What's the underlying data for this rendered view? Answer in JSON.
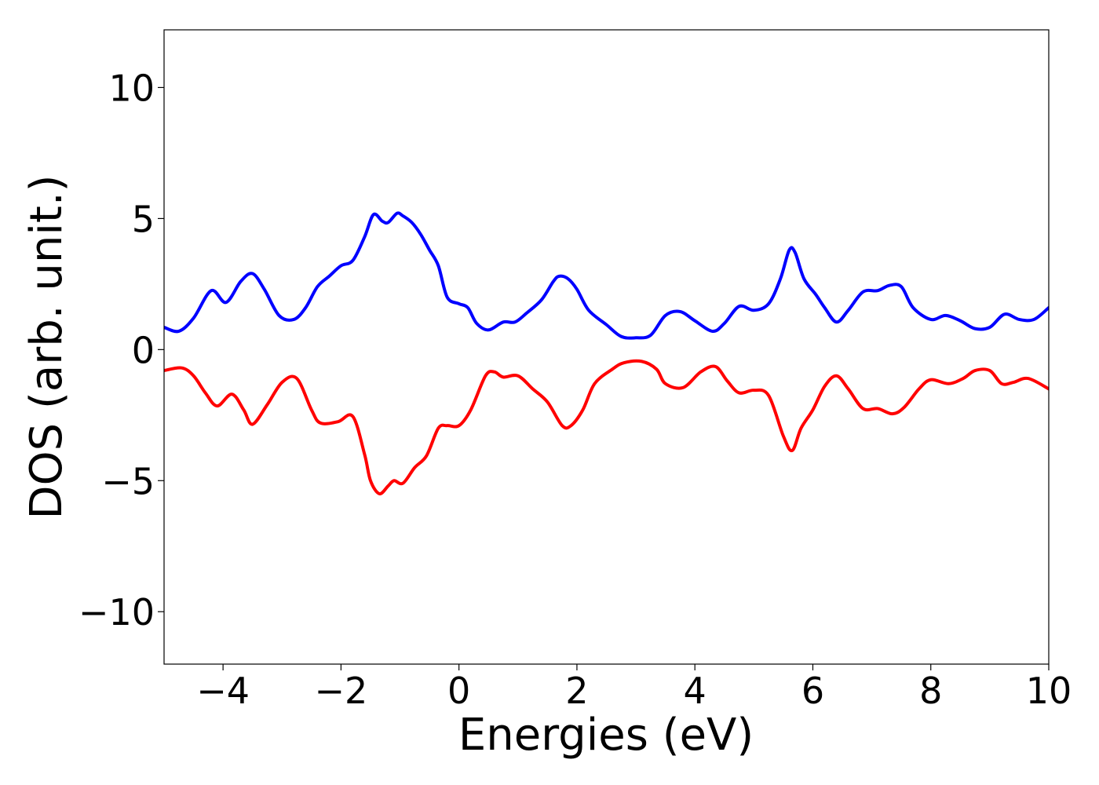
{
  "chart_data": {
    "type": "line",
    "title": "",
    "xlabel": "Energies (eV)",
    "ylabel": "DOS (arb. unit.)",
    "xlim": [
      -5,
      10
    ],
    "ylim": [
      -12,
      12.2
    ],
    "xticks": [
      -4,
      -2,
      0,
      2,
      4,
      6,
      8,
      10
    ],
    "xtick_labels": [
      "−4",
      "−2",
      "0",
      "2",
      "4",
      "6",
      "8",
      "10"
    ],
    "yticks": [
      10,
      5,
      0,
      -5,
      -10
    ],
    "ytick_labels": [
      "10",
      "5",
      "0",
      "−5",
      "−10"
    ],
    "grid": false,
    "legend": "none",
    "series": [
      {
        "color": "#0000ff",
        "points": [
          [
            -5.0,
            0.85
          ],
          [
            -4.75,
            0.7
          ],
          [
            -4.5,
            1.2
          ],
          [
            -4.2,
            2.25
          ],
          [
            -3.95,
            1.8
          ],
          [
            -3.7,
            2.6
          ],
          [
            -3.5,
            2.9
          ],
          [
            -3.3,
            2.3
          ],
          [
            -3.05,
            1.3
          ],
          [
            -2.8,
            1.15
          ],
          [
            -2.6,
            1.6
          ],
          [
            -2.4,
            2.4
          ],
          [
            -2.2,
            2.8
          ],
          [
            -2.0,
            3.2
          ],
          [
            -1.8,
            3.4
          ],
          [
            -1.6,
            4.3
          ],
          [
            -1.45,
            5.15
          ],
          [
            -1.3,
            4.9
          ],
          [
            -1.2,
            4.85
          ],
          [
            -1.05,
            5.2
          ],
          [
            -0.95,
            5.1
          ],
          [
            -0.8,
            4.85
          ],
          [
            -0.65,
            4.4
          ],
          [
            -0.5,
            3.8
          ],
          [
            -0.35,
            3.2
          ],
          [
            -0.2,
            2.0
          ],
          [
            0.0,
            1.75
          ],
          [
            0.15,
            1.6
          ],
          [
            0.3,
            1.0
          ],
          [
            0.5,
            0.75
          ],
          [
            0.75,
            1.05
          ],
          [
            0.95,
            1.05
          ],
          [
            1.15,
            1.4
          ],
          [
            1.4,
            1.9
          ],
          [
            1.6,
            2.6
          ],
          [
            1.7,
            2.8
          ],
          [
            1.85,
            2.7
          ],
          [
            2.0,
            2.3
          ],
          [
            2.2,
            1.5
          ],
          [
            2.5,
            0.95
          ],
          [
            2.75,
            0.5
          ],
          [
            3.0,
            0.45
          ],
          [
            3.25,
            0.55
          ],
          [
            3.5,
            1.3
          ],
          [
            3.75,
            1.45
          ],
          [
            4.0,
            1.1
          ],
          [
            4.3,
            0.7
          ],
          [
            4.5,
            1.0
          ],
          [
            4.75,
            1.65
          ],
          [
            5.0,
            1.5
          ],
          [
            5.25,
            1.75
          ],
          [
            5.45,
            2.7
          ],
          [
            5.6,
            3.8
          ],
          [
            5.7,
            3.7
          ],
          [
            5.85,
            2.7
          ],
          [
            6.05,
            2.1
          ],
          [
            6.2,
            1.6
          ],
          [
            6.4,
            1.05
          ],
          [
            6.6,
            1.5
          ],
          [
            6.85,
            2.2
          ],
          [
            7.1,
            2.25
          ],
          [
            7.3,
            2.45
          ],
          [
            7.5,
            2.4
          ],
          [
            7.7,
            1.6
          ],
          [
            8.0,
            1.15
          ],
          [
            8.25,
            1.3
          ],
          [
            8.5,
            1.1
          ],
          [
            8.75,
            0.8
          ],
          [
            9.0,
            0.85
          ],
          [
            9.25,
            1.35
          ],
          [
            9.5,
            1.15
          ],
          [
            9.75,
            1.15
          ],
          [
            10.0,
            1.6
          ]
        ]
      },
      {
        "color": "#ff0000",
        "points": [
          [
            -5.0,
            -0.8
          ],
          [
            -4.7,
            -0.7
          ],
          [
            -4.5,
            -1.0
          ],
          [
            -4.3,
            -1.65
          ],
          [
            -4.1,
            -2.15
          ],
          [
            -3.85,
            -1.7
          ],
          [
            -3.65,
            -2.3
          ],
          [
            -3.5,
            -2.85
          ],
          [
            -3.25,
            -2.1
          ],
          [
            -3.0,
            -1.25
          ],
          [
            -2.75,
            -1.1
          ],
          [
            -2.5,
            -2.3
          ],
          [
            -2.35,
            -2.8
          ],
          [
            -2.05,
            -2.75
          ],
          [
            -1.8,
            -2.55
          ],
          [
            -1.6,
            -4.0
          ],
          [
            -1.5,
            -5.0
          ],
          [
            -1.35,
            -5.5
          ],
          [
            -1.2,
            -5.2
          ],
          [
            -1.1,
            -5.0
          ],
          [
            -0.95,
            -5.1
          ],
          [
            -0.75,
            -4.5
          ],
          [
            -0.55,
            -4.05
          ],
          [
            -0.35,
            -3.0
          ],
          [
            -0.2,
            -2.9
          ],
          [
            0.0,
            -2.9
          ],
          [
            0.2,
            -2.3
          ],
          [
            0.45,
            -1.0
          ],
          [
            0.6,
            -0.85
          ],
          [
            0.75,
            -1.05
          ],
          [
            1.0,
            -1.0
          ],
          [
            1.25,
            -1.5
          ],
          [
            1.5,
            -2.0
          ],
          [
            1.75,
            -2.9
          ],
          [
            1.9,
            -2.9
          ],
          [
            2.1,
            -2.3
          ],
          [
            2.3,
            -1.3
          ],
          [
            2.6,
            -0.75
          ],
          [
            2.8,
            -0.5
          ],
          [
            3.1,
            -0.45
          ],
          [
            3.35,
            -0.75
          ],
          [
            3.5,
            -1.3
          ],
          [
            3.8,
            -1.45
          ],
          [
            4.1,
            -0.85
          ],
          [
            4.35,
            -0.65
          ],
          [
            4.55,
            -1.2
          ],
          [
            4.75,
            -1.65
          ],
          [
            5.0,
            -1.55
          ],
          [
            5.25,
            -1.75
          ],
          [
            5.5,
            -3.3
          ],
          [
            5.65,
            -3.85
          ],
          [
            5.8,
            -3.0
          ],
          [
            6.0,
            -2.3
          ],
          [
            6.2,
            -1.4
          ],
          [
            6.4,
            -1.0
          ],
          [
            6.6,
            -1.5
          ],
          [
            6.85,
            -2.25
          ],
          [
            7.1,
            -2.25
          ],
          [
            7.35,
            -2.45
          ],
          [
            7.55,
            -2.2
          ],
          [
            7.8,
            -1.5
          ],
          [
            8.0,
            -1.15
          ],
          [
            8.3,
            -1.3
          ],
          [
            8.55,
            -1.1
          ],
          [
            8.75,
            -0.8
          ],
          [
            9.0,
            -0.8
          ],
          [
            9.2,
            -1.3
          ],
          [
            9.4,
            -1.25
          ],
          [
            9.65,
            -1.1
          ],
          [
            10.0,
            -1.5
          ]
        ]
      }
    ]
  }
}
